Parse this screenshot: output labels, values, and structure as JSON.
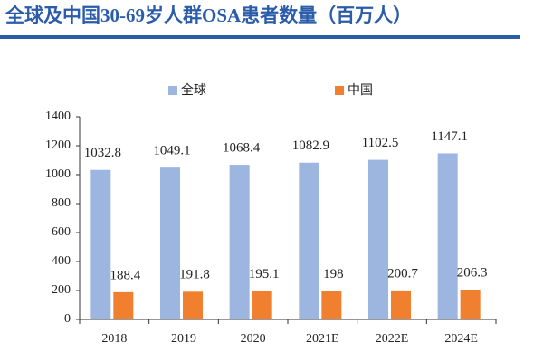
{
  "chart_data": {
    "type": "bar",
    "title": "全球及中国30-69岁人群OSA患者数量（百万人）",
    "categories": [
      "2018",
      "2019",
      "2020",
      "2021E",
      "2022E",
      "2024E"
    ],
    "series": [
      {
        "name": "全球",
        "color": "#9db6e0",
        "values": [
          1032.8,
          1049.1,
          1068.4,
          1082.9,
          1102.5,
          1147.1
        ]
      },
      {
        "name": "中国",
        "color": "#f07f2f",
        "values": [
          188.4,
          191.8,
          195.1,
          198,
          200.7,
          206.3
        ]
      }
    ],
    "ylim": [
      0,
      1400
    ],
    "yticks": [
      0,
      200,
      400,
      600,
      800,
      1000,
      1200,
      1400
    ],
    "grid": false,
    "legend": "top",
    "title_color": "#2a5caa"
  }
}
